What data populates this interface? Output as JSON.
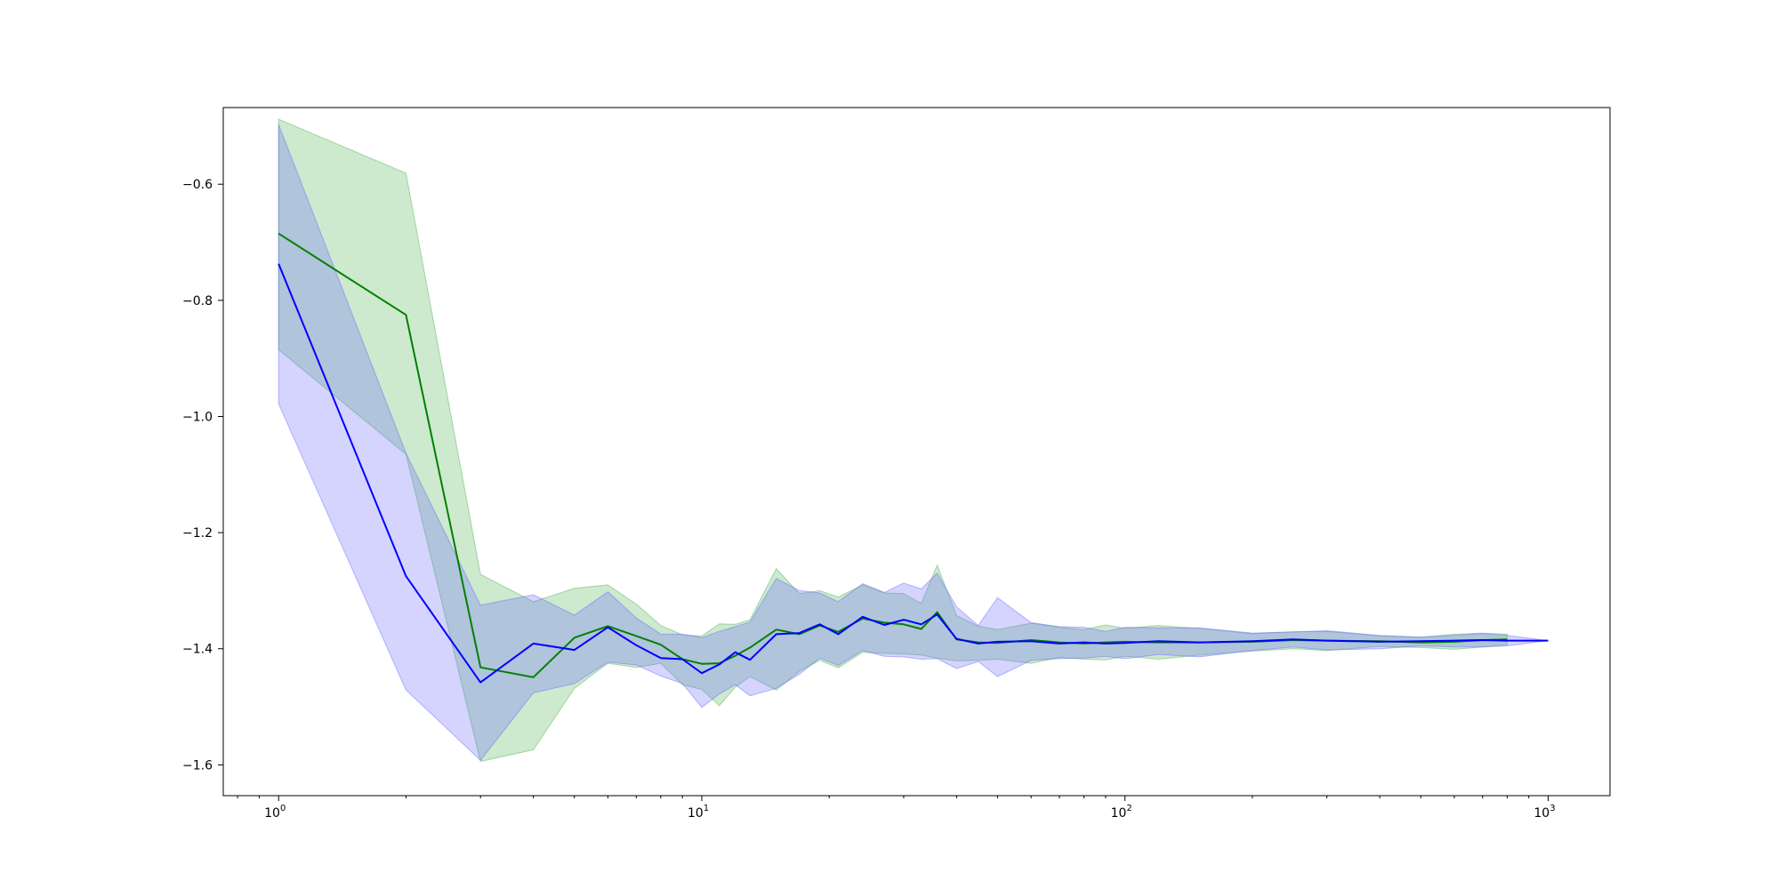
{
  "chart_data": {
    "type": "line",
    "title": "",
    "xlabel": "",
    "ylabel": "",
    "xscale": "log",
    "xlim": [
      0.74,
      1400
    ],
    "ylim": [
      -1.653,
      -0.468
    ],
    "grid": false,
    "legend": null,
    "x_ticks": [
      {
        "value": 1,
        "base": "10",
        "exp": "0"
      },
      {
        "value": 10,
        "base": "10",
        "exp": "1"
      },
      {
        "value": 100,
        "base": "10",
        "exp": "2"
      },
      {
        "value": 1000,
        "base": "10",
        "exp": "3"
      }
    ],
    "y_ticks": [
      {
        "value": -0.6,
        "label": "−0.6"
      },
      {
        "value": -0.8,
        "label": "−0.8"
      },
      {
        "value": -1.0,
        "label": "−1.0"
      },
      {
        "value": -1.2,
        "label": "−1.2"
      },
      {
        "value": -1.4,
        "label": "−1.4"
      },
      {
        "value": -1.6,
        "label": "−1.6"
      }
    ],
    "series": [
      {
        "color": "#008000",
        "fill": "#4caf50",
        "x": [
          1,
          2,
          3,
          4,
          5,
          6,
          7,
          8,
          9,
          10,
          11,
          12,
          13,
          15,
          17,
          19,
          21,
          24,
          27,
          30,
          33,
          36,
          40,
          45,
          50,
          60,
          70,
          80,
          90,
          100,
          120,
          150,
          200,
          250,
          300,
          400,
          500,
          600,
          700,
          800
        ],
        "y": [
          -0.685,
          -0.825,
          -1.432,
          -1.449,
          -1.381,
          -1.361,
          -1.378,
          -1.393,
          -1.418,
          -1.426,
          -1.425,
          -1.412,
          -1.398,
          -1.367,
          -1.375,
          -1.36,
          -1.371,
          -1.348,
          -1.355,
          -1.358,
          -1.366,
          -1.337,
          -1.384,
          -1.389,
          -1.39,
          -1.385,
          -1.389,
          -1.391,
          -1.389,
          -1.388,
          -1.389,
          -1.389,
          -1.388,
          -1.385,
          -1.386,
          -1.387,
          -1.389,
          -1.388,
          -1.385,
          -1.384
        ],
        "upper": [
          -0.488,
          -0.581,
          -1.272,
          -1.319,
          -1.296,
          -1.29,
          -1.323,
          -1.36,
          -1.376,
          -1.378,
          -1.357,
          -1.358,
          -1.35,
          -1.262,
          -1.305,
          -1.3,
          -1.311,
          -1.29,
          -1.304,
          -1.305,
          -1.322,
          -1.256,
          -1.343,
          -1.361,
          -1.367,
          -1.356,
          -1.363,
          -1.367,
          -1.359,
          -1.365,
          -1.36,
          -1.365,
          -1.374,
          -1.371,
          -1.37,
          -1.378,
          -1.38,
          -1.375,
          -1.373,
          -1.375
        ],
        "lower": [
          -0.885,
          -1.065,
          -1.594,
          -1.574,
          -1.468,
          -1.425,
          -1.432,
          -1.425,
          -1.462,
          -1.47,
          -1.498,
          -1.466,
          -1.448,
          -1.471,
          -1.439,
          -1.42,
          -1.433,
          -1.406,
          -1.408,
          -1.409,
          -1.411,
          -1.416,
          -1.421,
          -1.42,
          -1.418,
          -1.425,
          -1.415,
          -1.418,
          -1.419,
          -1.413,
          -1.418,
          -1.411,
          -1.404,
          -1.4,
          -1.403,
          -1.396,
          -1.398,
          -1.401,
          -1.397,
          -1.393
        ]
      },
      {
        "color": "#0000ff",
        "fill": "#6666ff",
        "x": [
          1,
          2,
          3,
          4,
          5,
          6,
          7,
          8,
          9,
          10,
          11,
          12,
          13,
          15,
          17,
          19,
          21,
          24,
          27,
          30,
          33,
          36,
          40,
          45,
          50,
          60,
          70,
          80,
          90,
          100,
          120,
          150,
          200,
          250,
          300,
          400,
          500,
          600,
          700,
          800,
          1000
        ],
        "y": [
          -0.737,
          -1.275,
          -1.458,
          -1.391,
          -1.402,
          -1.363,
          -1.394,
          -1.416,
          -1.418,
          -1.442,
          -1.427,
          -1.406,
          -1.419,
          -1.375,
          -1.373,
          -1.358,
          -1.375,
          -1.345,
          -1.359,
          -1.35,
          -1.358,
          -1.341,
          -1.383,
          -1.391,
          -1.388,
          -1.387,
          -1.391,
          -1.389,
          -1.391,
          -1.39,
          -1.387,
          -1.389,
          -1.387,
          -1.384,
          -1.386,
          -1.388,
          -1.387,
          -1.386,
          -1.385,
          -1.386,
          -1.386
        ],
        "upper": [
          -0.497,
          -1.063,
          -1.325,
          -1.307,
          -1.342,
          -1.302,
          -1.347,
          -1.375,
          -1.375,
          -1.381,
          -1.37,
          -1.362,
          -1.354,
          -1.279,
          -1.3,
          -1.304,
          -1.319,
          -1.288,
          -1.303,
          -1.287,
          -1.297,
          -1.27,
          -1.328,
          -1.36,
          -1.312,
          -1.355,
          -1.362,
          -1.363,
          -1.37,
          -1.363,
          -1.364,
          -1.364,
          -1.373,
          -1.371,
          -1.369,
          -1.377,
          -1.38,
          -1.377,
          -1.374,
          -1.377,
          -1.386
        ],
        "lower": [
          -0.978,
          -1.471,
          -1.592,
          -1.476,
          -1.46,
          -1.423,
          -1.428,
          -1.447,
          -1.46,
          -1.501,
          -1.478,
          -1.462,
          -1.481,
          -1.468,
          -1.444,
          -1.416,
          -1.429,
          -1.403,
          -1.413,
          -1.414,
          -1.418,
          -1.417,
          -1.434,
          -1.422,
          -1.448,
          -1.42,
          -1.417,
          -1.416,
          -1.413,
          -1.417,
          -1.41,
          -1.414,
          -1.403,
          -1.397,
          -1.402,
          -1.4,
          -1.395,
          -1.397,
          -1.397,
          -1.395,
          -1.386
        ]
      }
    ]
  }
}
